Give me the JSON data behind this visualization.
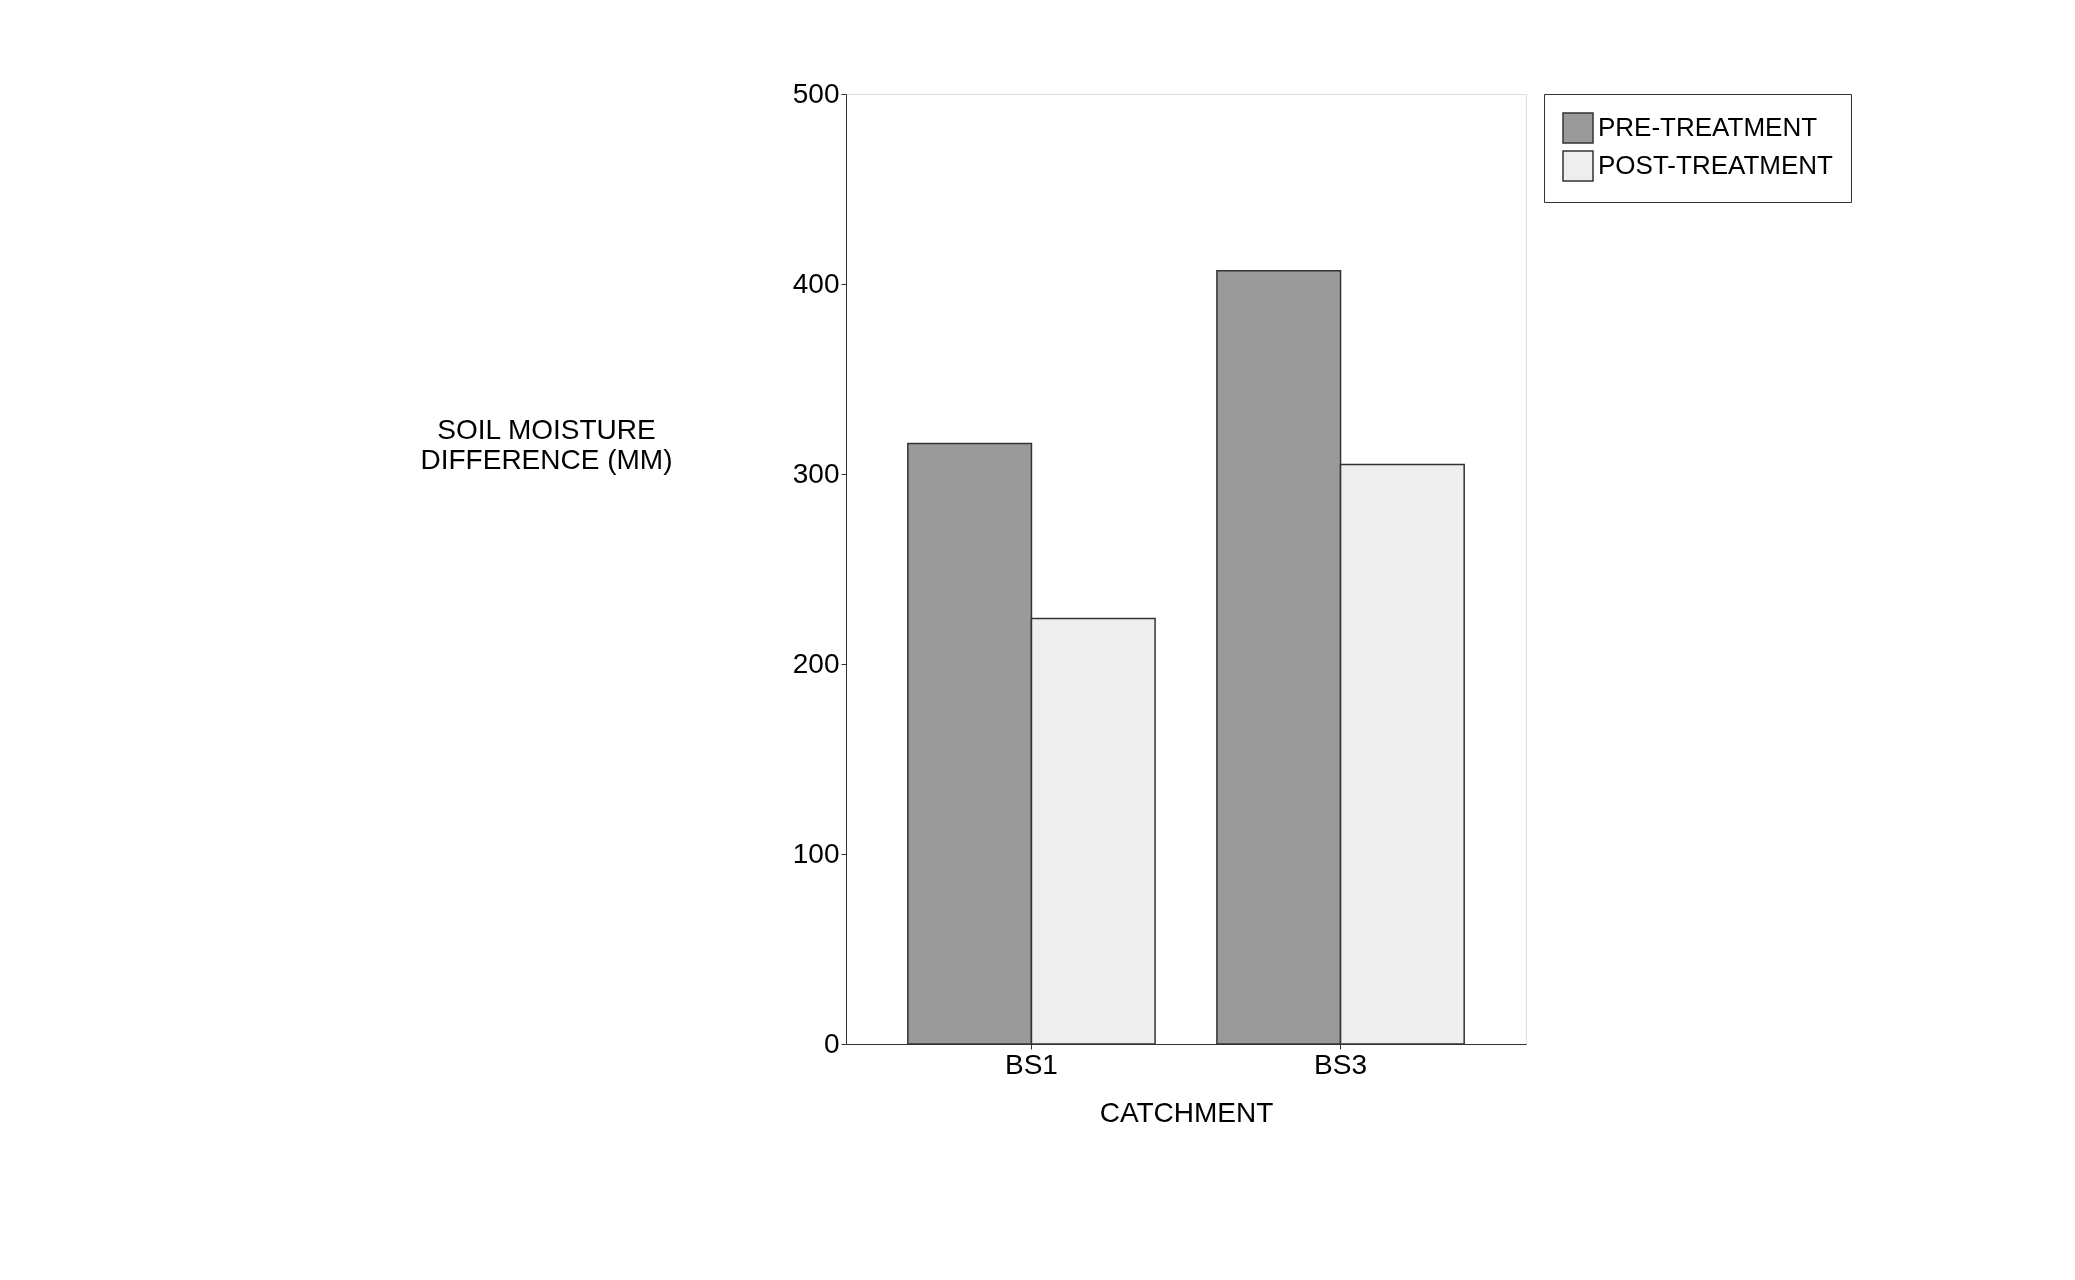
{
  "chart_data": {
    "type": "bar",
    "xlabel": "CATCHMENT",
    "ylabel": "SOIL MOISTURE DIFFERENCE (MM)",
    "categories": [
      "BS1",
      "BS3"
    ],
    "series": [
      {
        "name": "PRE-TREATMENT",
        "color": "#9a9a9a",
        "values": [
          316,
          407
        ]
      },
      {
        "name": "POST-TREATMENT",
        "color": "#eeeeee",
        "values": [
          224,
          305
        ]
      }
    ],
    "ylim": [
      0,
      500
    ],
    "yticks": [
      0,
      100,
      200,
      300,
      400,
      500
    ],
    "grid": false,
    "legend": "right"
  }
}
